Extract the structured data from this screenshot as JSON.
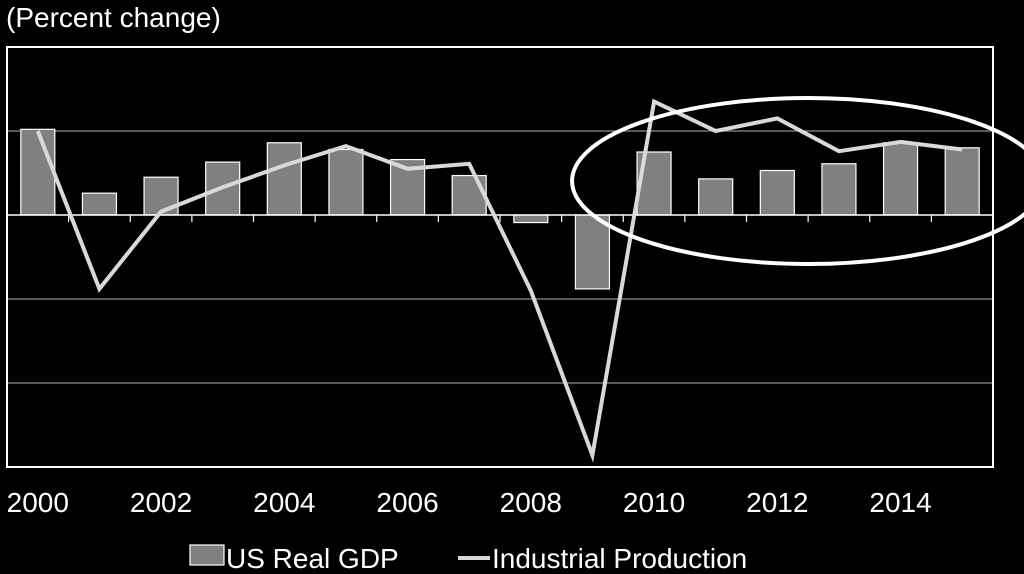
{
  "chart_data": {
    "type": "bar",
    "title": "(Percent change)",
    "xlabel": "",
    "ylabel": "",
    "ylim": [
      -30,
      20
    ],
    "ygrid": [
      10,
      0,
      -10,
      -20
    ],
    "x": [
      2000,
      2001,
      2002,
      2003,
      2004,
      2005,
      2006,
      2007,
      2008,
      2009,
      2010,
      2011,
      2012,
      2013,
      2014,
      2015
    ],
    "x_tick_labels": [
      "2000",
      "2002",
      "2004",
      "2006",
      "2008",
      "2010",
      "2012",
      "2014"
    ],
    "series": [
      {
        "name": "US Real GDP",
        "kind": "bar",
        "color": "#808080",
        "values": [
          10.2,
          2.6,
          4.5,
          6.3,
          8.6,
          7.8,
          6.6,
          4.7,
          -0.9,
          -8.8,
          7.5,
          4.3,
          5.3,
          6.1,
          8.6,
          8.0
        ]
      },
      {
        "name": "Industrial Production",
        "kind": "line",
        "color": "#d9d9d9",
        "values": [
          10.0,
          -8.8,
          0.4,
          3.3,
          5.9,
          8.2,
          5.5,
          6.1,
          -9.0,
          -28.6,
          13.5,
          10.0,
          11.5,
          7.6,
          8.7,
          7.8
        ]
      }
    ],
    "annotation": {
      "shape": "ellipse",
      "highlights": [
        2010,
        2015
      ],
      "color": "#ffffff"
    },
    "legend_position": "bottom"
  }
}
